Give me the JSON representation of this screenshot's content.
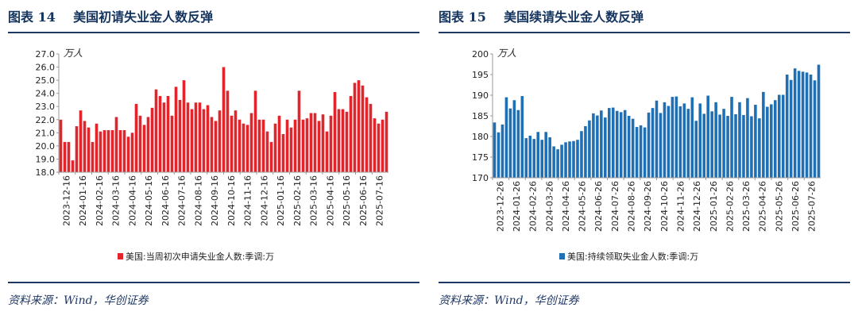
{
  "charts": [
    {
      "figure_label": "图表 14",
      "title": "美国初请失业金人数反弹",
      "source": "资料来源：Wind，华创证券",
      "color": "#e3242b",
      "chart_data": {
        "type": "bar",
        "title": "美国初请失业金人数反弹",
        "unit": "万人",
        "ylim": [
          18.0,
          27.0
        ],
        "yticks": [
          "27.0",
          "26.0",
          "25.0",
          "24.0",
          "23.0",
          "22.0",
          "21.0",
          "20.0",
          "19.0",
          "18.0"
        ],
        "xticks": [
          "2023-12-16",
          "2024-01-16",
          "2024-02-16",
          "2024-03-16",
          "2024-04-16",
          "2024-05-16",
          "2024-06-16",
          "2024-07-16",
          "2024-08-16",
          "2024-09-16",
          "2024-10-16",
          "2024-11-16",
          "2024-12-16",
          "2025-01-16",
          "2025-02-16",
          "2025-03-16",
          "2025-04-16",
          "2025-05-16",
          "2025-06-16",
          "2025-07-16"
        ],
        "legend_position": "bottom",
        "series": [
          {
            "name": "美国:当周初次申请失业金人数:季调:万",
            "values": [
              22.0,
              20.3,
              20.3,
              18.9,
              21.5,
              22.7,
              21.9,
              21.4,
              20.3,
              21.7,
              21.1,
              21.2,
              21.2,
              21.2,
              22.2,
              21.2,
              21.2,
              20.7,
              21.0,
              23.2,
              22.3,
              21.6,
              22.2,
              22.9,
              24.3,
              23.8,
              23.3,
              23.8,
              22.3,
              24.5,
              23.5,
              25.0,
              23.3,
              22.8,
              23.3,
              23.3,
              22.8,
              23.1,
              22.2,
              21.9,
              22.7,
              26.0,
              24.2,
              22.3,
              22.7,
              22.0,
              21.7,
              21.6,
              22.5,
              24.2,
              22.0,
              22.0,
              21.1,
              20.3,
              21.7,
              22.3,
              20.9,
              22.0,
              21.4,
              22.0,
              24.2,
              22.0,
              22.1,
              22.5,
              22.5,
              21.9,
              22.4,
              21.1,
              22.3,
              24.1,
              22.8,
              22.8,
              22.6,
              23.8,
              24.8,
              25.0,
              24.6,
              23.7,
              23.2,
              22.1,
              21.7,
              22.0,
              22.6
            ]
          }
        ]
      }
    },
    {
      "figure_label": "图表 15",
      "title": "美国续请失业金人数反弹",
      "source": "资料来源：Wind，华创证券",
      "color": "#1f6fb5",
      "chart_data": {
        "type": "bar",
        "title": "美国续请失业金人数反弹",
        "unit": "万人",
        "ylim": [
          170,
          200
        ],
        "yticks": [
          "200",
          "195",
          "190",
          "185",
          "180",
          "175",
          "170"
        ],
        "xticks": [
          "2023-12-26",
          "2024-01-26",
          "2024-02-26",
          "2024-03-26",
          "2024-04-26",
          "2024-05-26",
          "2024-06-26",
          "2024-07-26",
          "2024-08-26",
          "2024-09-26",
          "2024-10-26",
          "2024-11-26",
          "2024-12-26",
          "2025-01-26",
          "2025-02-26",
          "2025-03-26",
          "2025-04-26",
          "2025-05-26",
          "2025-06-26",
          "2025-07-26"
        ],
        "legend_position": "bottom",
        "series": [
          {
            "name": "美国:持续领取失业金人数:季调:万",
            "values": [
              183.4,
              181.0,
              182.9,
              189.5,
              186.8,
              188.8,
              186.4,
              189.8,
              179.6,
              180.2,
              179.4,
              181.1,
              179.2,
              181.1,
              179.8,
              177.6,
              176.9,
              178.0,
              178.6,
              178.8,
              178.9,
              179.2,
              181.3,
              182.5,
              183.9,
              185.6,
              185.1,
              186.3,
              184.6,
              186.9,
              187.0,
              186.2,
              185.9,
              186.4,
              185.0,
              184.3,
              182.3,
              182.7,
              182.2,
              185.8,
              186.9,
              188.7,
              185.7,
              188.3,
              187.4,
              189.6,
              189.7,
              187.3,
              188.0,
              186.7,
              189.5,
              183.8,
              188.0,
              185.5,
              189.9,
              186.1,
              188.3,
              185.3,
              186.7,
              185.0,
              189.6,
              185.4,
              188.3,
              185.2,
              189.3,
              184.9,
              187.7,
              184.4,
              190.8,
              187.2,
              187.8,
              188.8,
              190.1,
              190.1,
              195.0,
              193.7,
              196.5,
              195.9,
              195.7,
              195.5,
              195.0,
              193.6,
              197.4
            ]
          }
        ]
      }
    }
  ]
}
